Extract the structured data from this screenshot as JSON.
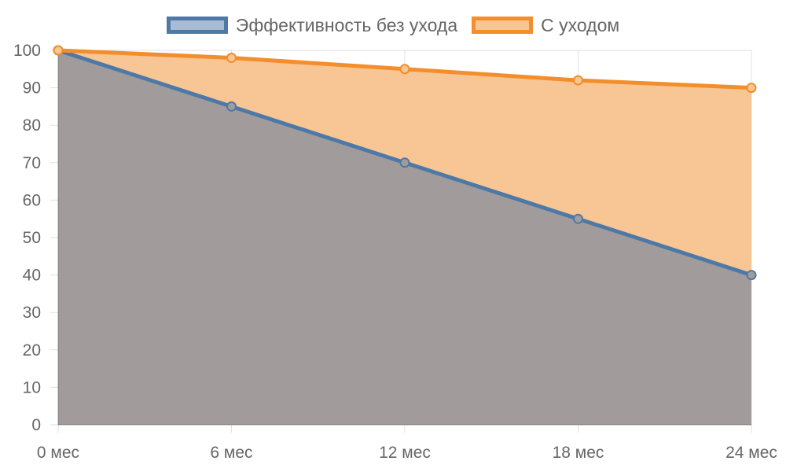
{
  "chart_data": {
    "type": "area",
    "categories": [
      "0 мес",
      "6 мес",
      "12 мес",
      "18 мес",
      "24 мес"
    ],
    "series": [
      {
        "name": "Эффективность без ухода",
        "values": [
          100,
          85,
          70,
          55,
          40
        ],
        "line_color": "#4e79a7",
        "fill_color": "#a19c9b",
        "swatch_fill": "#a8bcd6"
      },
      {
        "name": "С уходом",
        "values": [
          100,
          98,
          95,
          92,
          90
        ],
        "line_color": "#f28e2b",
        "fill_color": "#f8c594",
        "swatch_fill": "#f8c594"
      }
    ],
    "ylim": [
      0,
      100
    ],
    "yticks": [
      0,
      10,
      20,
      30,
      40,
      50,
      60,
      70,
      80,
      90,
      100
    ],
    "grid": true,
    "legend_position": "top-center",
    "title": "",
    "xlabel": "",
    "ylabel": ""
  }
}
